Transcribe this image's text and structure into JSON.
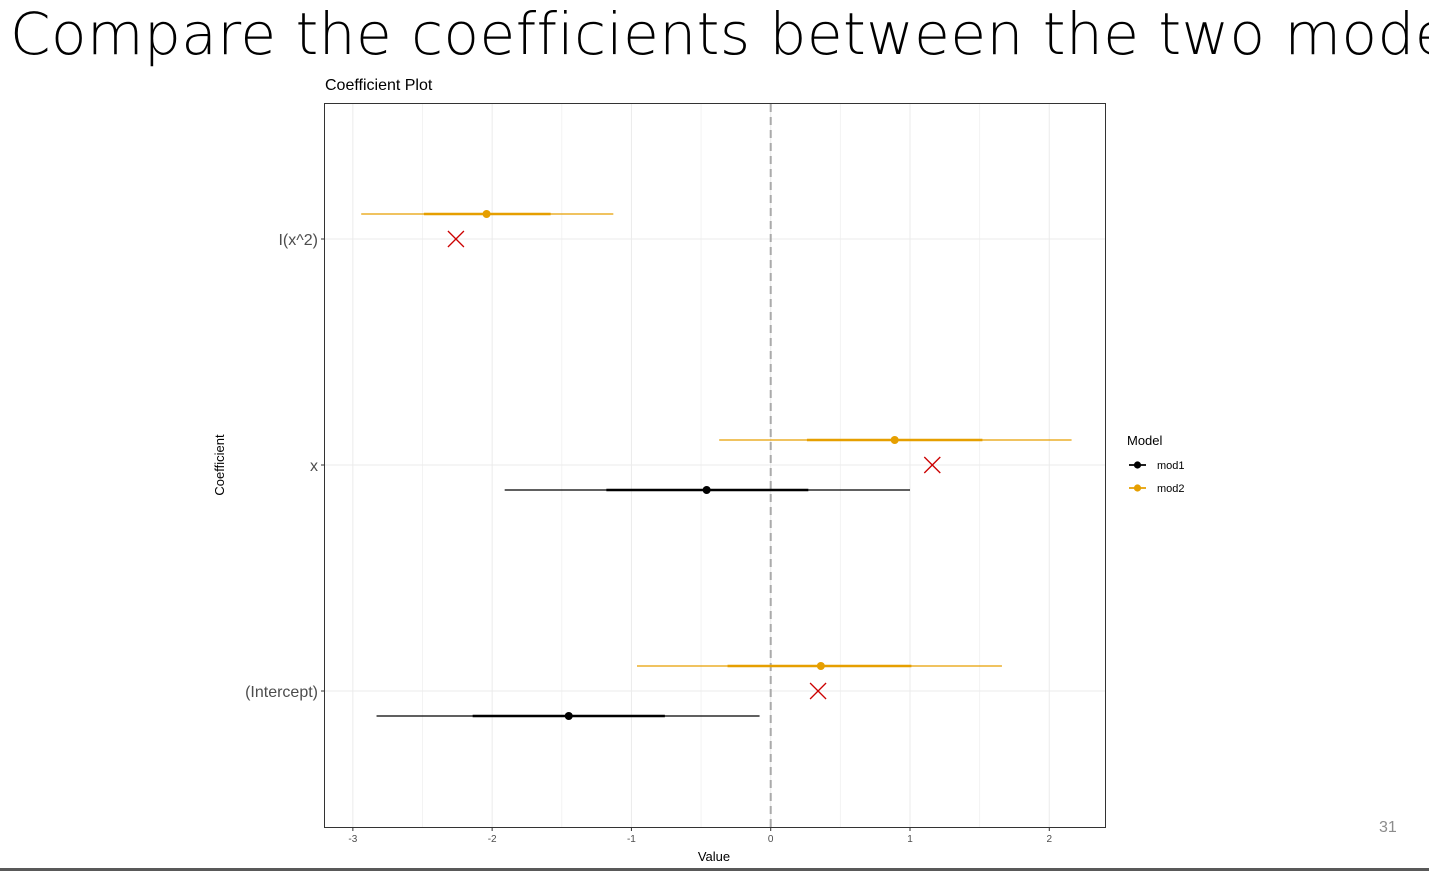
{
  "slide": {
    "title": "Compare the coefficients between the two models",
    "page_number": "31"
  },
  "chart_data": {
    "type": "coefficient_plot",
    "title": "Coefficient Plot",
    "xlabel": "Value",
    "ylabel": "Coefficient",
    "xlim": [
      -3.2,
      2.4
    ],
    "x_ticks": [
      -3,
      -2,
      -1,
      0,
      1,
      2
    ],
    "x_tick_labels": [
      "-3",
      "-2",
      "-1",
      "0",
      "1",
      "2"
    ],
    "categories": [
      "I(x^2)",
      "x",
      "(Intercept)"
    ],
    "reference_line": 0,
    "grid": true,
    "legend": {
      "title": "Model",
      "position": "right"
    },
    "series": [
      {
        "name": "mod1",
        "color": "#000000",
        "points": [
          {
            "coefficient": "x",
            "estimate": -0.46,
            "inner": [
              -1.18,
              0.27
            ],
            "outer": [
              -1.91,
              1.0
            ]
          },
          {
            "coefficient": "(Intercept)",
            "estimate": -1.45,
            "inner": [
              -2.14,
              -0.76
            ],
            "outer": [
              -2.83,
              -0.08
            ]
          }
        ]
      },
      {
        "name": "mod2",
        "color": "#E69F00",
        "points": [
          {
            "coefficient": "I(x^2)",
            "estimate": -2.04,
            "inner": [
              -2.49,
              -1.58
            ],
            "outer": [
              -2.94,
              -1.13
            ]
          },
          {
            "coefficient": "x",
            "estimate": 0.89,
            "inner": [
              0.26,
              1.52
            ],
            "outer": [
              -0.37,
              2.16
            ]
          },
          {
            "coefficient": "(Intercept)",
            "estimate": 0.36,
            "inner": [
              -0.31,
              1.01
            ],
            "outer": [
              -0.96,
              1.66
            ]
          }
        ]
      }
    ],
    "true_values": {
      "color": "#CC0000",
      "marker": "x-mark",
      "points": [
        {
          "coefficient": "I(x^2)",
          "value": -2.26
        },
        {
          "coefficient": "x",
          "value": 1.16
        },
        {
          "coefficient": "(Intercept)",
          "value": 0.34
        }
      ]
    }
  }
}
